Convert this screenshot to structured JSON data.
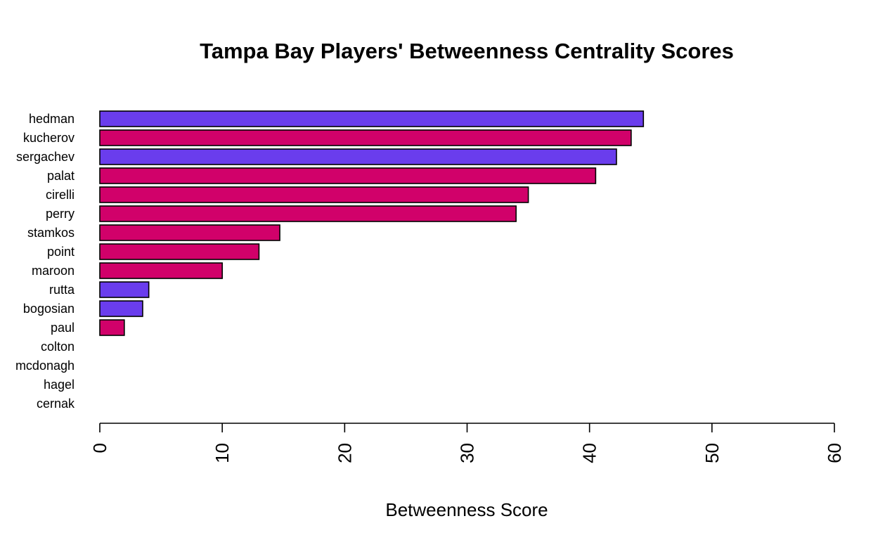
{
  "chart_data": {
    "type": "bar",
    "orientation": "horizontal",
    "title": "Tampa Bay Players' Betweenness Centrality Scores",
    "xlabel": "Betweenness Score",
    "ylabel": "",
    "xlim": [
      0,
      60
    ],
    "x_ticks": [
      "0",
      "10",
      "20",
      "30",
      "40",
      "50",
      "60"
    ],
    "x_tick_rotation": "vertical",
    "grid": false,
    "legend": "none",
    "categories": [
      "hedman",
      "kucherov",
      "sergachev",
      "palat",
      "cirelli",
      "perry",
      "stamkos",
      "point",
      "maroon",
      "rutta",
      "bogosian",
      "paul",
      "colton",
      "mcdonagh",
      "hagel",
      "cernak"
    ],
    "values": [
      44.4,
      43.4,
      42.2,
      40.5,
      35.0,
      34.0,
      14.7,
      13.0,
      10.0,
      4.0,
      3.5,
      2.0,
      0,
      0,
      0,
      0
    ],
    "bar_colors": [
      "#6a3ded",
      "#d1016a",
      "#6a3ded",
      "#d1016a",
      "#d1016a",
      "#d1016a",
      "#d1016a",
      "#d1016a",
      "#d1016a",
      "#6a3ded",
      "#6a3ded",
      "#d1016a",
      "#d1016a",
      "#d1016a",
      "#d1016a",
      "#d1016a"
    ]
  }
}
